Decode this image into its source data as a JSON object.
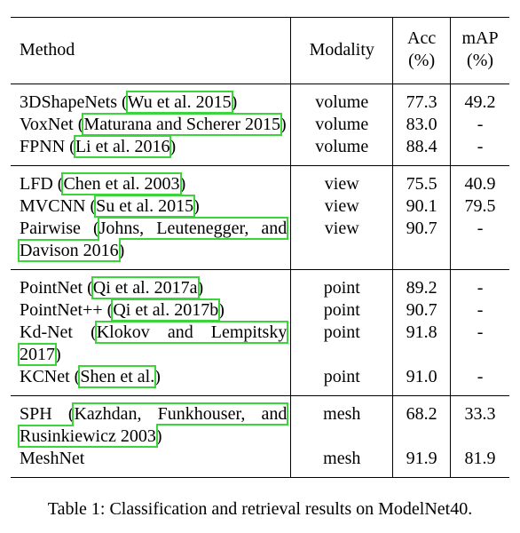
{
  "table": {
    "headers": {
      "method": "Method",
      "modality": "Modality",
      "acc_line1": "Acc",
      "acc_line2": "(%)",
      "map_line1": "mAP",
      "map_line2": "(%)"
    },
    "groups": [
      {
        "rows": [
          {
            "name": "3DShapeNets",
            "ref": "Wu et al. 2015",
            "modality": "volume",
            "acc": "77.3",
            "map": "49.2"
          },
          {
            "name": "VoxNet",
            "ref": "Maturana and Scherer 2015",
            "modality": "volume",
            "acc": "83.0",
            "map": "-"
          },
          {
            "name": "FPNN",
            "ref": "Li et al. 2016",
            "modality": "volume",
            "acc": "88.4",
            "map": "-"
          }
        ]
      },
      {
        "rows": [
          {
            "name": "LFD",
            "ref": "Chen et al. 2003",
            "modality": "view",
            "acc": "75.5",
            "map": "40.9"
          },
          {
            "name": "MVCNN",
            "ref": "Su et al. 2015",
            "modality": "view",
            "acc": "90.1",
            "map": "79.5"
          },
          {
            "name": "Pairwise",
            "ref": "Johns, Leutenegger, and Davison 2016",
            "modality": "view",
            "acc": "90.7",
            "map": "-"
          }
        ]
      },
      {
        "rows": [
          {
            "name": "PointNet",
            "ref": "Qi et al. 2017a",
            "modality": "point",
            "acc": "89.2",
            "map": "-"
          },
          {
            "name": "PointNet++",
            "ref": "Qi et al. 2017b",
            "modality": "point",
            "acc": "90.7",
            "map": "-"
          },
          {
            "name": "Kd-Net",
            "ref": "Klokov and Lempitsky 2017",
            "modality": "point",
            "acc": "91.8",
            "map": "-"
          },
          {
            "name": "KCNet",
            "ref": "Shen et al.",
            "modality": "point",
            "acc": "91.0",
            "map": "-"
          }
        ]
      },
      {
        "rows": [
          {
            "name": "SPH",
            "ref": "Kazhdan, Funkhouser, and Rusinkiewicz 2003",
            "modality": "mesh",
            "acc": "68.2",
            "map": "33.3"
          },
          {
            "name": "MeshNet",
            "ref": "",
            "modality": "mesh",
            "acc": "91.9",
            "map": "81.9"
          }
        ]
      }
    ]
  },
  "caption": "Table 1: Classification and retrieval results on ModelNet40.",
  "colors": {
    "citation_box": "#3bd43b",
    "text": "#000000"
  }
}
